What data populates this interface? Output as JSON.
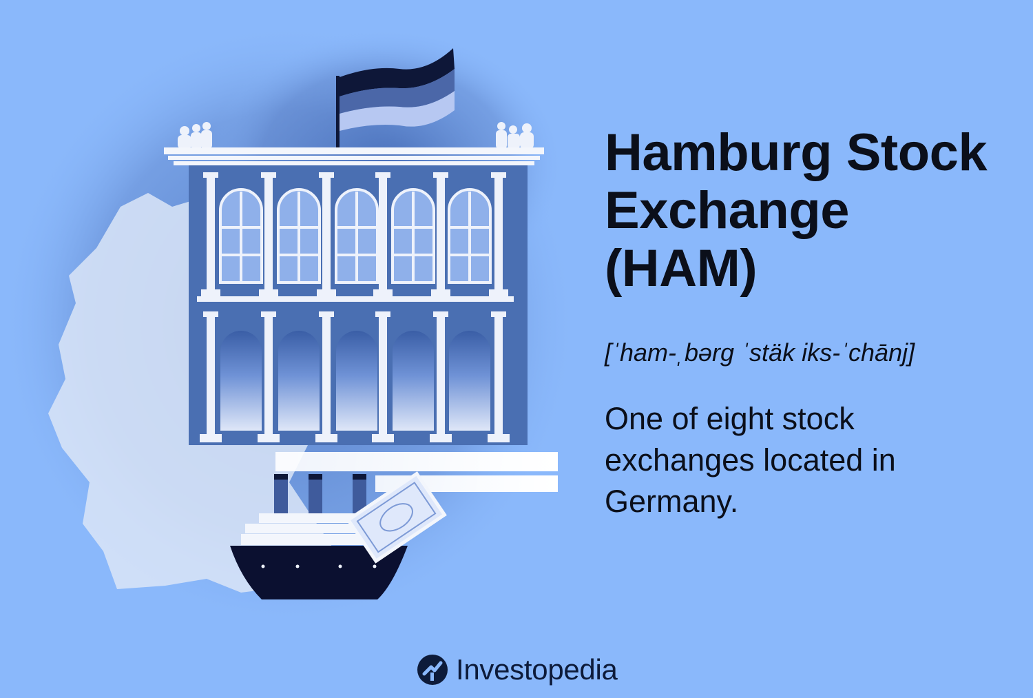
{
  "heading": {
    "lines": [
      "Hamburg Stock",
      "Exchange",
      "(HAM)"
    ]
  },
  "pronunciation": "[ˈham-ˌbərg ˈstäk iks-ˈchānj]",
  "definition": "One of eight stock exchanges located in Germany.",
  "brand": {
    "name": "Investopedia",
    "logo_icon": "investopedia-logo-icon"
  },
  "colors": {
    "background": "#8ab8fb",
    "building": "#4a6fb2",
    "columns": "#e6ecfa",
    "windows": "#8fb0ea",
    "ship_hull": "#0b1030",
    "flag_top": "#0e1738",
    "flag_mid": "#4b67a8",
    "flag_bottom": "#b7c8f2",
    "germany_map": "#d9e4f7",
    "text": "#0b0f1a"
  }
}
